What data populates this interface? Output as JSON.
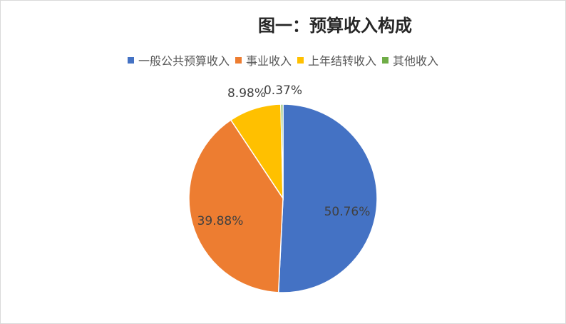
{
  "chart_data": {
    "type": "pie",
    "title": "图一：预算收入构成",
    "legend_position": "top",
    "start_angle": "12 o'clock, clockwise",
    "slices": [
      {
        "name": "一般公共预算收入",
        "value": 50.76,
        "label": "50.76%",
        "color": "#4472C4"
      },
      {
        "name": "事业收入",
        "value": 39.88,
        "label": "39.88%",
        "color": "#ED7D31"
      },
      {
        "name": "上年结转收入",
        "value": 8.98,
        "label": "8.98%",
        "color": "#FFC000"
      },
      {
        "name": "其他收入",
        "value": 0.37,
        "label": "0.37%",
        "color": "#70AD47"
      }
    ]
  }
}
